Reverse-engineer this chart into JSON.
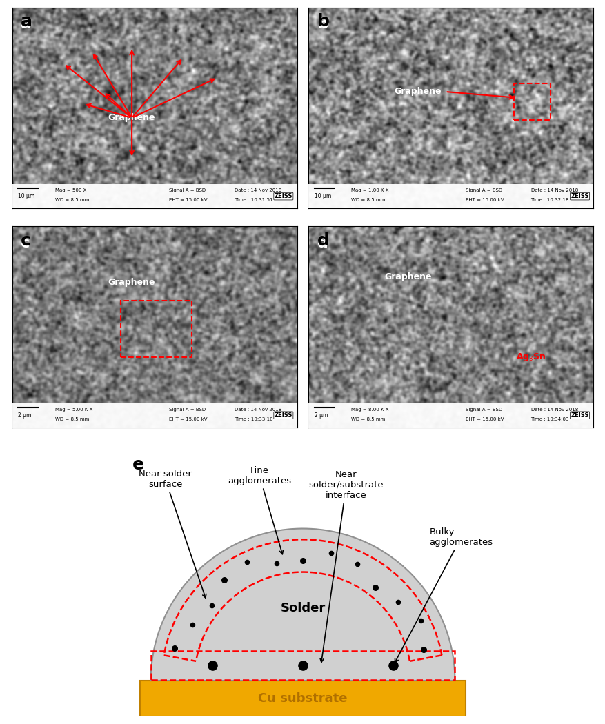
{
  "figure_width": 8.78,
  "figure_height": 10.5,
  "bg_color": "#ffffff",
  "panel_labels": [
    "a",
    "b",
    "c",
    "d",
    "e"
  ],
  "panel_label_fontsize": 16,
  "panel_label_fontweight": "bold",
  "schematic": {
    "solder_color": "#d0d0d0",
    "solder_edge_color": "#a0a0a0",
    "cu_color": "#f0a800",
    "cu_edge_color": "#c08000",
    "cu_text": "Cu substrate",
    "solder_text": "Solder",
    "dashed_color": "red",
    "dot_color": "#000000",
    "label_color": "#000000",
    "labels": {
      "near_solder_surface": "Near solder\nsurface",
      "fine_agglomerates": "Fine\nagglomerates",
      "near_interface": "Near\nsolder/substrate\ninterface",
      "bulky_agglomerates": "Bulky\nagglomerates"
    }
  }
}
